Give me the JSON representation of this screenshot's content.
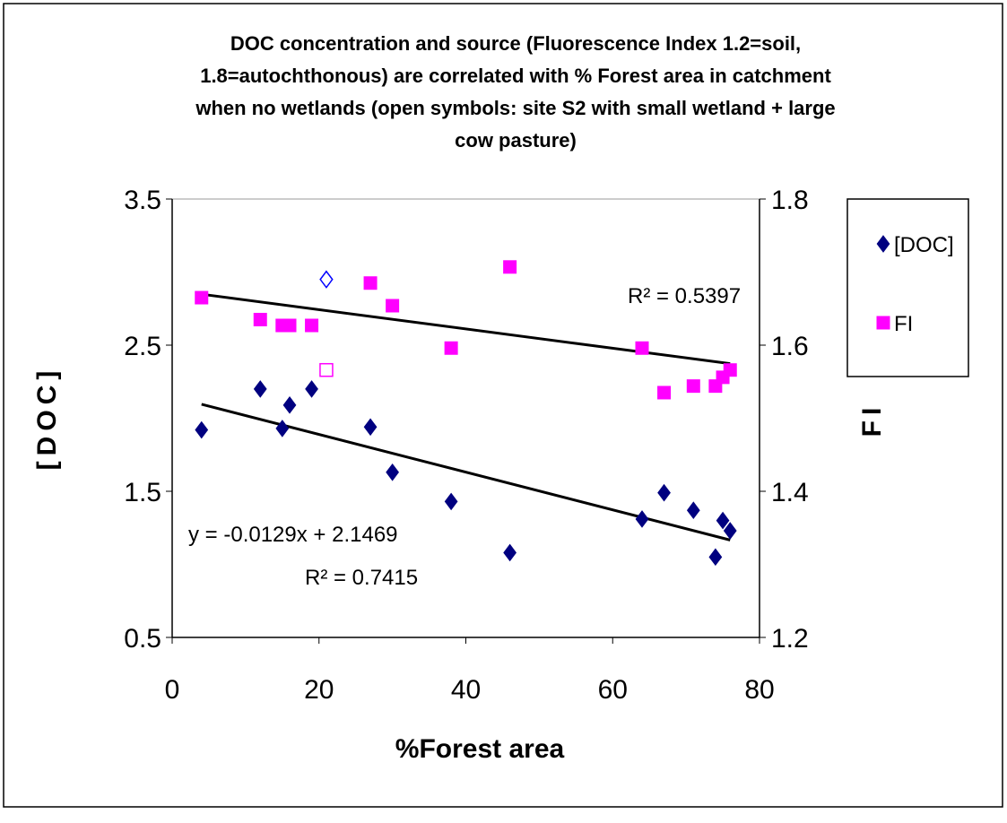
{
  "chart_data": {
    "type": "scatter",
    "title_lines": [
      "DOC concentration and source (Fluorescence Index 1.2=soil,",
      "1.8=autochthonous) are correlated with % Forest area in catchment",
      "when no wetlands (open symbols: site S2 with small wetland + large",
      "cow pasture)"
    ],
    "x_label": "%Forest area",
    "y_label": "[DOC]",
    "y2_label": "FI",
    "xlim": [
      0,
      80
    ],
    "xticks": [
      0,
      20,
      40,
      60,
      80
    ],
    "ylim": [
      0.5,
      3.5
    ],
    "yticks": [
      0.5,
      1.5,
      2.5,
      3.5
    ],
    "y2lim": [
      1.2,
      1.8
    ],
    "y2ticks": [
      1.2,
      1.4,
      1.6,
      1.8
    ],
    "legend": "right",
    "series": [
      {
        "name": "[DOC]",
        "color": "#000080",
        "marker": "diamond",
        "x": [
          4,
          12,
          15,
          16,
          19,
          27,
          30,
          38,
          46,
          64,
          67,
          71,
          74,
          75,
          76
        ],
        "values": [
          1.92,
          2.2,
          1.93,
          2.09,
          2.2,
          1.94,
          1.63,
          1.43,
          1.08,
          1.31,
          1.49,
          1.37,
          1.05,
          1.3,
          1.23
        ],
        "open": {
          "color": "#0000ff",
          "x": [
            21
          ],
          "values": [
            2.95
          ]
        },
        "trendline": {
          "slope": -0.0129,
          "intercept": 2.1469,
          "equation": "y = -0.0129x + 2.1469",
          "r2": "R² = 0.7415"
        }
      },
      {
        "name": "FI",
        "color": "#ff00ff",
        "marker": "square",
        "axis": "y2",
        "x": [
          4,
          12,
          15,
          16,
          19,
          27,
          30,
          38,
          46,
          64,
          67,
          71,
          74,
          75,
          76
        ],
        "values": [
          1.665,
          1.635,
          1.627,
          1.627,
          1.627,
          1.685,
          1.654,
          1.596,
          1.707,
          1.596,
          1.535,
          1.544,
          1.544,
          1.556,
          1.566
        ],
        "open": {
          "color": "#ff00ff",
          "x": [
            21
          ],
          "values": [
            1.566
          ]
        },
        "trendline": {
          "slope": -0.00132,
          "intercept": 1.675,
          "r2": "R² = 0.5397"
        }
      }
    ]
  }
}
